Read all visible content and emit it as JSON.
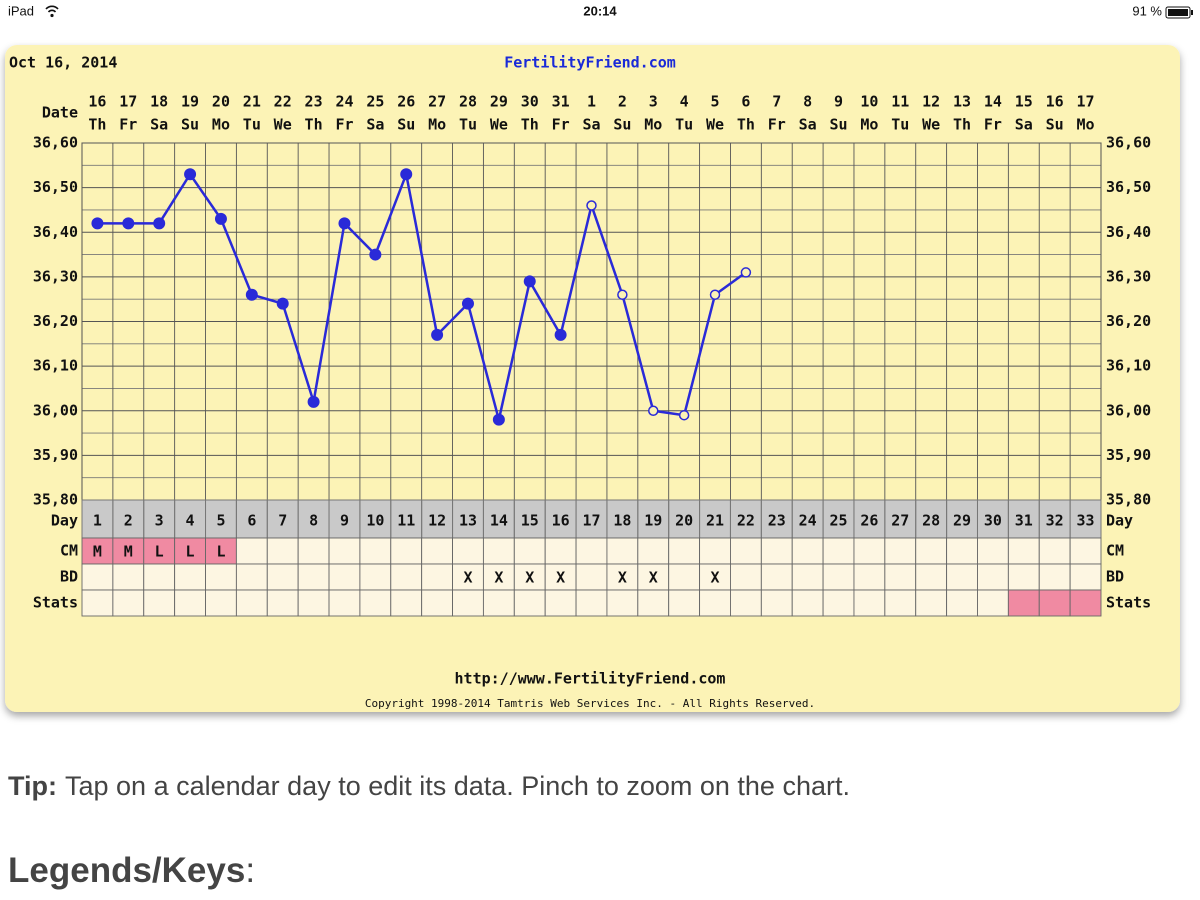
{
  "status_bar": {
    "device": "iPad",
    "time": "20:14",
    "battery": "91 %"
  },
  "chart_data": {
    "type": "line",
    "date_text": "Oct 16, 2014",
    "title": "FertilityFriend.com",
    "date_label": "Date",
    "day_label": "Day",
    "dates": [
      "16",
      "17",
      "18",
      "19",
      "20",
      "21",
      "22",
      "23",
      "24",
      "25",
      "26",
      "27",
      "28",
      "29",
      "30",
      "31",
      "1",
      "2",
      "3",
      "4",
      "5",
      "6",
      "7",
      "8",
      "9",
      "10",
      "11",
      "12",
      "13",
      "14",
      "15",
      "16",
      "17"
    ],
    "weekdays": [
      "Th",
      "Fr",
      "Sa",
      "Su",
      "Mo",
      "Tu",
      "We",
      "Th",
      "Fr",
      "Sa",
      "Su",
      "Mo",
      "Tu",
      "We",
      "Th",
      "Fr",
      "Sa",
      "Su",
      "Mo",
      "Tu",
      "We",
      "Th",
      "Fr",
      "Sa",
      "Su",
      "Mo",
      "Tu",
      "We",
      "Th",
      "Fr",
      "Sa",
      "Su",
      "Mo"
    ],
    "days": [
      1,
      2,
      3,
      4,
      5,
      6,
      7,
      8,
      9,
      10,
      11,
      12,
      13,
      14,
      15,
      16,
      17,
      18,
      19,
      20,
      21,
      22,
      23,
      24,
      25,
      26,
      27,
      28,
      29,
      30,
      31,
      32,
      33
    ],
    "values": [
      36.42,
      36.42,
      36.42,
      36.53,
      36.43,
      36.26,
      36.24,
      36.02,
      36.42,
      36.35,
      36.53,
      36.17,
      36.24,
      35.98,
      36.29,
      36.17,
      36.46,
      36.26,
      36.0,
      35.99,
      36.26,
      36.31,
      null,
      null,
      null,
      null,
      null,
      null,
      null,
      null,
      null,
      null,
      null
    ],
    "markers": [
      "filled",
      "filled",
      "filled",
      "filled",
      "filled",
      "filled",
      "filled",
      "filled",
      "filled",
      "filled",
      "filled",
      "filled",
      "filled",
      "filled",
      "filled",
      "filled",
      "open",
      "open",
      "open",
      "open",
      "open",
      "open",
      null,
      null,
      null,
      null,
      null,
      null,
      null,
      null,
      null,
      null,
      null
    ],
    "color": "#2a2ad8",
    "ylim": [
      35.8,
      36.6
    ],
    "yticks": [
      {
        "value": 35.8,
        "label": "35,80"
      },
      {
        "value": 35.9,
        "label": "35,90"
      },
      {
        "value": 36.0,
        "label": "36,00"
      },
      {
        "value": 36.1,
        "label": "36,10"
      },
      {
        "value": 36.2,
        "label": "36,20"
      },
      {
        "value": 36.3,
        "label": "36,30"
      },
      {
        "value": 36.4,
        "label": "36,40"
      },
      {
        "value": 36.5,
        "label": "36,50"
      },
      {
        "value": 36.6,
        "label": "36,60"
      }
    ],
    "grid": true,
    "rows": [
      {
        "label": "CM",
        "cells": [
          "M",
          "M",
          "L",
          "L",
          "L",
          null,
          null,
          null,
          null,
          null,
          null,
          null,
          null,
          null,
          null,
          null,
          null,
          null,
          null,
          null,
          null,
          null,
          null,
          null,
          null,
          null,
          null,
          null,
          null,
          null,
          null,
          null,
          null
        ]
      },
      {
        "label": "BD",
        "cells": [
          null,
          null,
          null,
          null,
          null,
          null,
          null,
          null,
          null,
          null,
          null,
          null,
          "X",
          "X",
          "X",
          "X",
          null,
          "X",
          "X",
          null,
          "X",
          null,
          null,
          null,
          null,
          null,
          null,
          null,
          null,
          null,
          null,
          null,
          null
        ]
      },
      {
        "label": "Stats",
        "cells": [
          null,
          null,
          null,
          null,
          null,
          null,
          null,
          null,
          null,
          null,
          null,
          null,
          null,
          null,
          null,
          null,
          null,
          null,
          null,
          null,
          null,
          null,
          null,
          null,
          null,
          null,
          null,
          null,
          null,
          null,
          null,
          null,
          null
        ]
      }
    ],
    "stats_highlight_days": [
      31,
      32,
      33
    ],
    "footer_url": "http://www.FertilityFriend.com",
    "copyright": "Copyright 1998-2014 Tamtris Web Services Inc. - All Rights Reserved."
  },
  "tip": {
    "label": "Tip:",
    "text": "Tap on a calendar day to edit its data. Pinch to zoom on the chart."
  },
  "legends": {
    "title": "Legends/Keys",
    "suffix": ":"
  }
}
